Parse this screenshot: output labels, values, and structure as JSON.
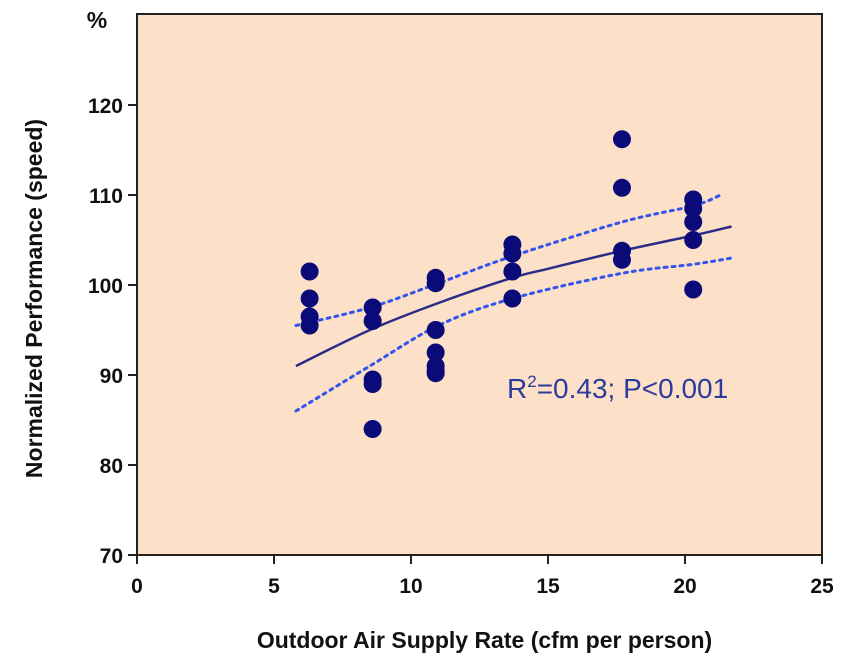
{
  "chart_data": {
    "type": "scatter",
    "title": "",
    "xlabel": "Outdoor Air Supply Rate (cfm per person)",
    "ylabel": "Normalized Performance (speed)",
    "yunit": "%",
    "xlim": [
      0,
      25
    ],
    "ylim": [
      70,
      125
    ],
    "xticks": [
      0,
      5,
      10,
      15,
      20,
      25
    ],
    "yticks": [
      70,
      80,
      90,
      100,
      110,
      120
    ],
    "grid": false,
    "legend": "none",
    "annotation": {
      "text": "R²=0.43; P<0.001",
      "pre": "R",
      "sup": "2",
      "post": "=0.43; P<0.001"
    },
    "colors": {
      "background": "#fde0c8",
      "points": "#0a0a78",
      "fit": "#2b2b88",
      "ci": "#3355ee",
      "annot": "#2d3b9c"
    },
    "series": [
      {
        "kind": "points",
        "x": [
          6.3,
          6.3,
          6.3,
          6.3,
          8.6,
          8.6,
          8.6,
          8.6,
          8.6,
          10.9,
          10.9,
          10.9,
          10.9,
          10.9,
          10.9,
          10.9,
          13.7,
          13.7,
          13.7,
          13.7,
          17.7,
          17.7,
          17.7,
          17.7,
          20.3,
          20.3,
          20.3,
          20.3,
          20.3
        ],
        "y": [
          101.5,
          98.5,
          96.5,
          95.5,
          97.5,
          96.0,
          89.5,
          89.0,
          84.0,
          100.8,
          100.2,
          95.0,
          92.5,
          91.0,
          90.5,
          90.2,
          104.5,
          103.5,
          101.5,
          98.5,
          116.2,
          110.8,
          103.8,
          102.8,
          109.5,
          108.5,
          107.0,
          105.0,
          99.5
        ]
      },
      {
        "kind": "fit",
        "x": [
          5.8,
          8.5,
          11,
          13.7,
          15,
          17.7,
          20.3,
          21.7
        ],
        "y": [
          91.0,
          95.0,
          98.0,
          100.8,
          101.8,
          103.8,
          105.5,
          106.5
        ]
      },
      {
        "kind": "ci-upper",
        "x": [
          5.8,
          8.5,
          11,
          13.7,
          17.7,
          20.3,
          21.3
        ],
        "y": [
          95.5,
          97.5,
          100.2,
          103.2,
          107.0,
          108.8,
          110.0
        ]
      },
      {
        "kind": "ci-lower",
        "x": [
          5.8,
          8.5,
          11,
          13.7,
          17.7,
          20.3,
          21.7
        ],
        "y": [
          86.0,
          91.0,
          95.5,
          98.5,
          101.3,
          102.3,
          103.0
        ]
      }
    ]
  }
}
